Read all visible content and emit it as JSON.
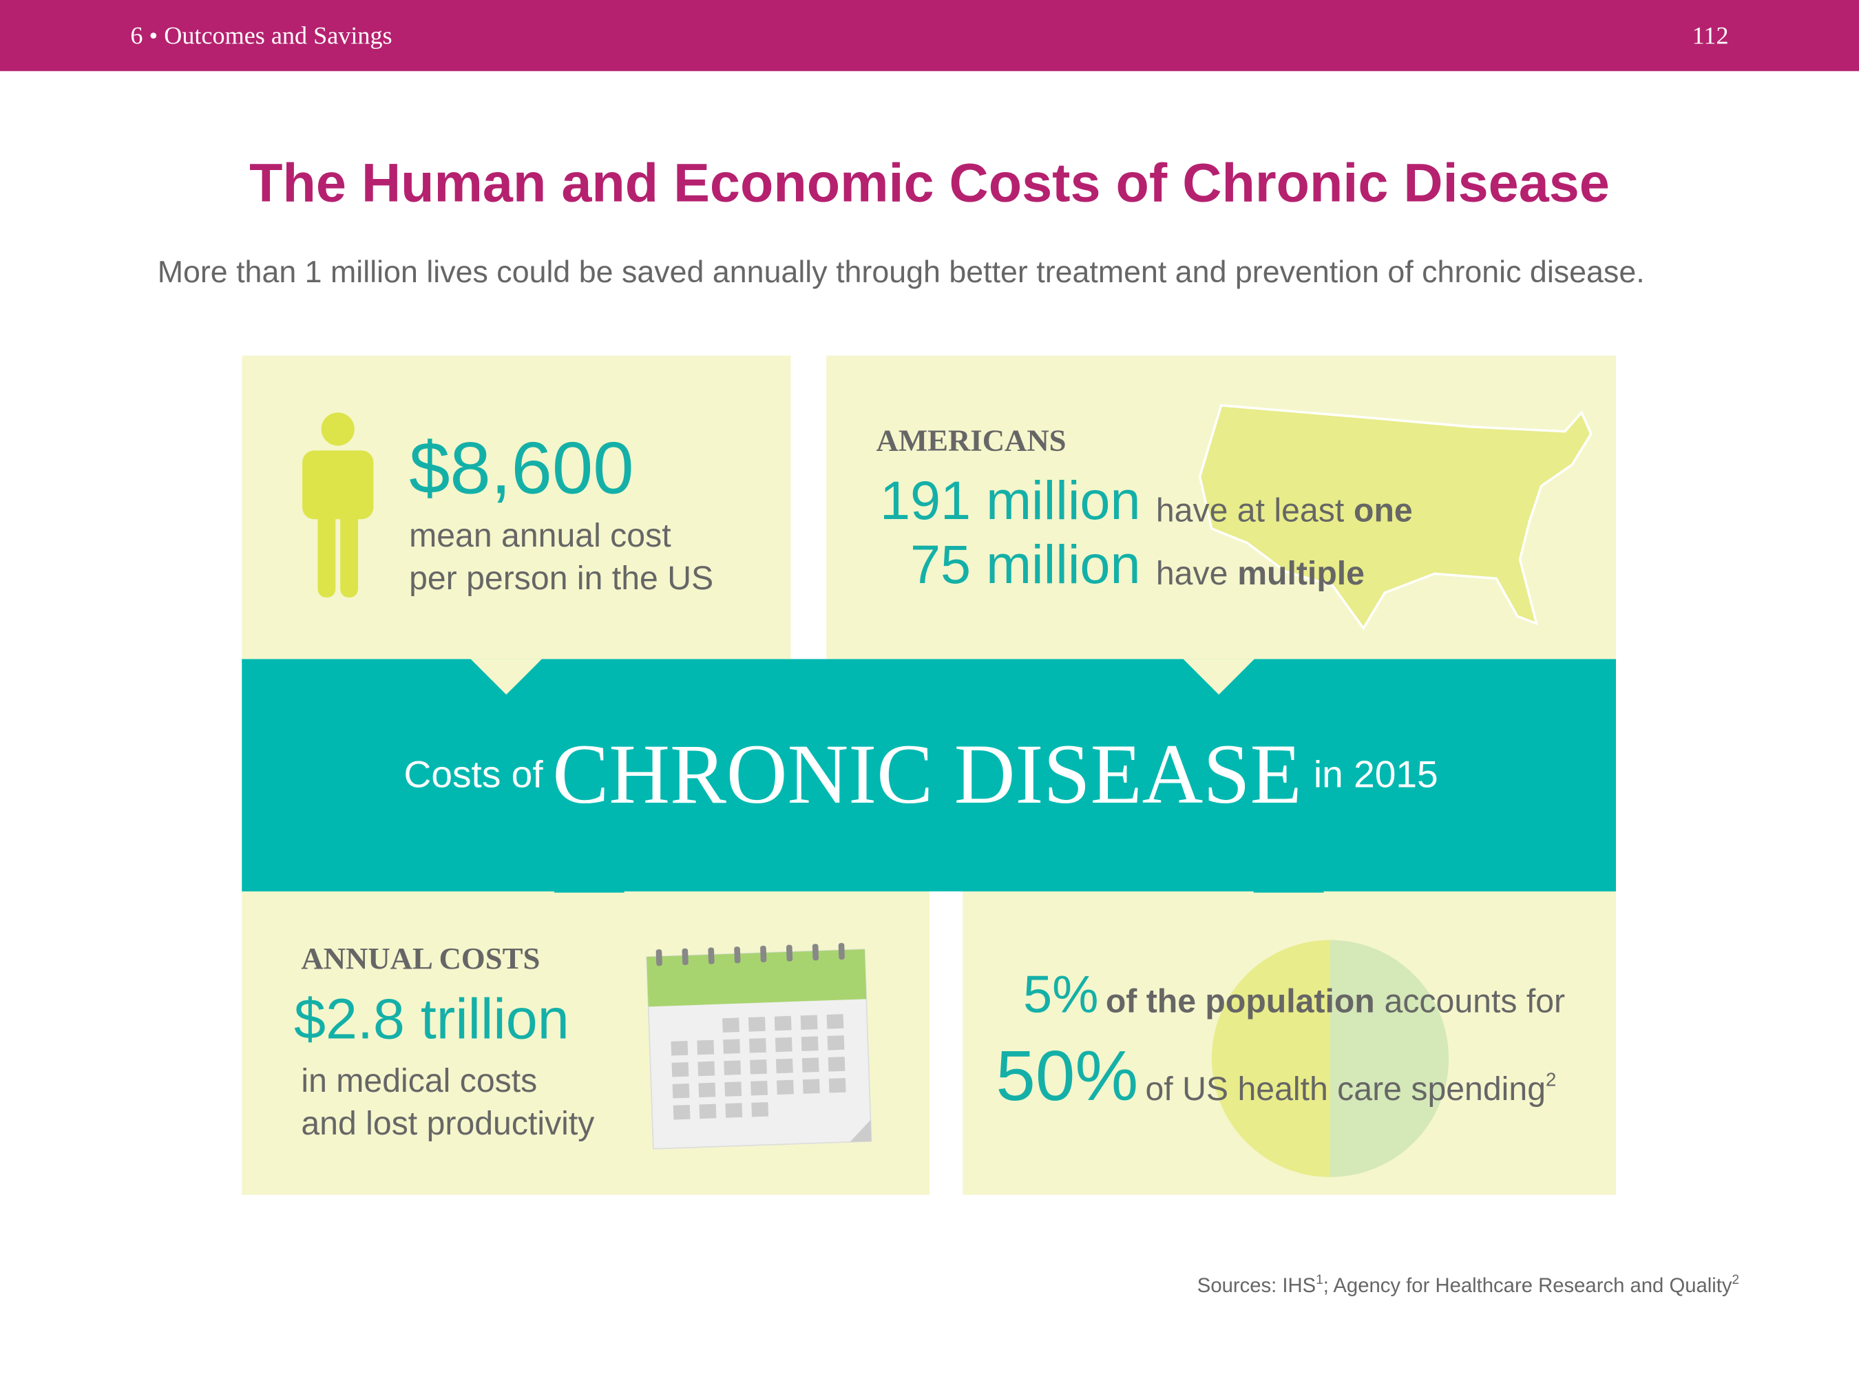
{
  "header": {
    "section": "6 • Outcomes and Savings",
    "page": "112"
  },
  "title": "The Human and Economic Costs of Chronic Disease",
  "subtitle": "More than 1 million lives could be saved annually through better treatment and prevention of chronic disease.",
  "panels": {
    "per_person": {
      "amount": "$8,600",
      "lines": [
        "mean annual cost",
        "per person in the US"
      ]
    },
    "americans": {
      "label": "AMERICANS",
      "rows": [
        {
          "amount": "191 million",
          "text": "have at least",
          "bold": "one"
        },
        {
          "amount": "75 million",
          "text": "have",
          "bold": "multiple"
        }
      ]
    },
    "banner": {
      "prefix": "Costs of",
      "main": "CHRONIC DISEASE",
      "suffix": "in 2015"
    },
    "annual": {
      "label": "ANNUAL COSTS",
      "amount": "$2.8 trillion",
      "lines": [
        "in medical costs",
        "and lost productivity"
      ]
    },
    "spending": {
      "pct1": "5%",
      "bold": "of the population",
      "text1": "accounts for",
      "pct2": "50%",
      "text2": "of US health care spending",
      "sup": "2"
    }
  },
  "sources": {
    "text": "Sources: IHS",
    "sup1": "1",
    "text2": "; Agency for Healthcare Research and Quality",
    "sup2": "2"
  }
}
